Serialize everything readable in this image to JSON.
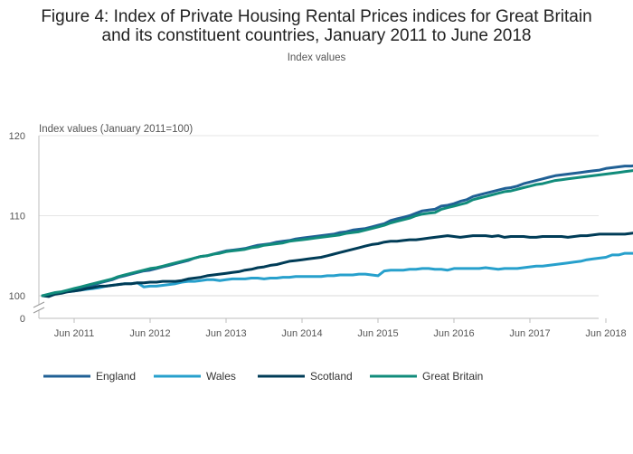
{
  "title_line1": "Figure 4: Index of Private Housing Rental Prices indices for Great Britain",
  "title_line2": "and its constituent countries, January 2011 to June 2018",
  "subtitle": "Index values",
  "chart_data": {
    "type": "line",
    "ylabel": "Index values (January 2011=100)",
    "xlabel": "",
    "ylim": [
      100,
      120
    ],
    "y_axis_break": true,
    "yticks": [
      0,
      100,
      110,
      120
    ],
    "xticks": [
      "Jun 2011",
      "Jun 2012",
      "Jun 2013",
      "Jun 2014",
      "Jun 2015",
      "Jun 2016",
      "Jun 2017",
      "Jun 2018"
    ],
    "x_start": "Jan 2011",
    "x_end": "Jun 2018",
    "grid": "horizontal",
    "legend_position": "bottom",
    "series": [
      {
        "name": "England",
        "color": "#206095",
        "values": [
          100.0,
          100.0,
          100.3,
          100.4,
          100.6,
          100.8,
          101.0,
          101.1,
          101.3,
          101.6,
          101.8,
          102.0,
          102.3,
          102.5,
          102.7,
          102.9,
          103.1,
          103.2,
          103.4,
          103.6,
          103.8,
          104.0,
          104.2,
          104.4,
          104.7,
          104.9,
          105.0,
          105.2,
          105.4,
          105.6,
          105.7,
          105.8,
          105.9,
          106.1,
          106.3,
          106.4,
          106.5,
          106.7,
          106.8,
          106.9,
          107.1,
          107.2,
          107.3,
          107.4,
          107.5,
          107.6,
          107.7,
          107.9,
          108.0,
          108.2,
          108.3,
          108.4,
          108.6,
          108.8,
          109.0,
          109.4,
          109.6,
          109.8,
          110.0,
          110.3,
          110.6,
          110.7,
          110.8,
          111.2,
          111.3,
          111.5,
          111.8,
          112.0,
          112.4,
          112.6,
          112.8,
          113.0,
          113.2,
          113.4,
          113.5,
          113.7,
          114.0,
          114.2,
          114.4,
          114.6,
          114.8,
          115.0,
          115.1,
          115.2,
          115.3,
          115.4,
          115.5,
          115.6,
          115.7,
          115.9,
          116.0,
          116.1,
          116.2,
          116.2,
          116.3,
          116.4,
          116.5,
          116.6,
          116.7,
          116.8
        ]
      },
      {
        "name": "Wales",
        "color": "#27a0cc",
        "values": [
          100.0,
          100.1,
          100.3,
          100.4,
          100.5,
          100.6,
          100.7,
          100.8,
          100.9,
          101.0,
          101.2,
          101.3,
          101.4,
          101.5,
          101.5,
          101.6,
          101.1,
          101.2,
          101.2,
          101.3,
          101.4,
          101.5,
          101.7,
          101.8,
          101.8,
          101.9,
          102.0,
          102.0,
          101.9,
          102.0,
          102.1,
          102.1,
          102.1,
          102.2,
          102.2,
          102.1,
          102.2,
          102.2,
          102.3,
          102.3,
          102.4,
          102.4,
          102.4,
          102.4,
          102.4,
          102.5,
          102.5,
          102.6,
          102.6,
          102.6,
          102.7,
          102.7,
          102.6,
          102.5,
          103.1,
          103.2,
          103.2,
          103.2,
          103.3,
          103.3,
          103.4,
          103.4,
          103.3,
          103.3,
          103.2,
          103.4,
          103.4,
          103.4,
          103.4,
          103.4,
          103.5,
          103.4,
          103.3,
          103.4,
          103.4,
          103.4,
          103.5,
          103.6,
          103.7,
          103.7,
          103.8,
          103.9,
          104.0,
          104.1,
          104.2,
          104.3,
          104.5,
          104.6,
          104.7,
          104.8,
          105.1,
          105.1,
          105.3,
          105.3,
          105.3,
          105.4,
          105.4,
          105.5,
          105.6,
          105.6
        ]
      },
      {
        "name": "Scotland",
        "color": "#003c57",
        "values": [
          100.0,
          99.9,
          100.2,
          100.3,
          100.5,
          100.6,
          100.7,
          100.9,
          101.0,
          101.2,
          101.2,
          101.3,
          101.4,
          101.5,
          101.5,
          101.6,
          101.6,
          101.7,
          101.7,
          101.8,
          101.8,
          101.8,
          101.9,
          102.1,
          102.2,
          102.3,
          102.5,
          102.6,
          102.7,
          102.8,
          102.9,
          103.0,
          103.2,
          103.3,
          103.5,
          103.6,
          103.8,
          103.9,
          104.1,
          104.3,
          104.4,
          104.5,
          104.6,
          104.7,
          104.8,
          105.0,
          105.2,
          105.4,
          105.6,
          105.8,
          106.0,
          106.2,
          106.4,
          106.5,
          106.7,
          106.8,
          106.8,
          106.9,
          107.0,
          107.0,
          107.1,
          107.2,
          107.3,
          107.4,
          107.5,
          107.4,
          107.3,
          107.4,
          107.5,
          107.5,
          107.5,
          107.4,
          107.5,
          107.3,
          107.4,
          107.4,
          107.4,
          107.3,
          107.3,
          107.4,
          107.4,
          107.4,
          107.4,
          107.3,
          107.4,
          107.5,
          107.5,
          107.6,
          107.7,
          107.7,
          107.7,
          107.7,
          107.7,
          107.8,
          107.9,
          107.9,
          107.8,
          108.0,
          108.0,
          108.0
        ]
      },
      {
        "name": "Great Britain",
        "color": "#118c7b",
        "values": [
          100.0,
          100.2,
          100.4,
          100.5,
          100.7,
          100.9,
          101.1,
          101.3,
          101.5,
          101.7,
          101.9,
          102.1,
          102.4,
          102.6,
          102.8,
          103.0,
          103.2,
          103.4,
          103.5,
          103.7,
          103.9,
          104.1,
          104.3,
          104.5,
          104.7,
          104.9,
          105.0,
          105.2,
          105.3,
          105.5,
          105.6,
          105.7,
          105.8,
          106.0,
          106.1,
          106.3,
          106.4,
          106.5,
          106.6,
          106.8,
          106.9,
          107.0,
          107.1,
          107.2,
          107.3,
          107.4,
          107.5,
          107.6,
          107.8,
          107.9,
          108.0,
          108.2,
          108.4,
          108.6,
          108.8,
          109.1,
          109.3,
          109.5,
          109.7,
          110.0,
          110.2,
          110.3,
          110.4,
          110.8,
          111.0,
          111.2,
          111.4,
          111.6,
          112.0,
          112.2,
          112.4,
          112.6,
          112.8,
          113.0,
          113.1,
          113.3,
          113.5,
          113.7,
          113.9,
          114.0,
          114.2,
          114.4,
          114.5,
          114.6,
          114.7,
          114.8,
          114.9,
          115.0,
          115.1,
          115.2,
          115.3,
          115.4,
          115.5,
          115.6,
          115.7,
          115.7,
          115.8,
          115.9,
          115.9,
          116.0
        ]
      }
    ]
  }
}
